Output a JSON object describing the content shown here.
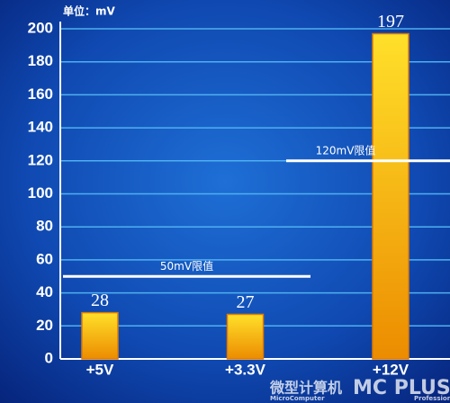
{
  "chart_data": {
    "type": "bar",
    "title": "单位：mV",
    "categories": [
      "+5V",
      "+3.3V",
      "+12V"
    ],
    "values": [
      28,
      27,
      197
    ],
    "color": "#f5b400",
    "ylim": [
      0,
      200
    ],
    "yticks": [
      0,
      20,
      40,
      60,
      80,
      100,
      120,
      140,
      160,
      180,
      200
    ],
    "grid": true,
    "reference_lines": [
      {
        "label": "50mV限值",
        "value": 50
      },
      {
        "label": "120mV限值",
        "value": 120
      }
    ],
    "watermark": [
      "微型计算机",
      "MicroComputer",
      "MC PLUS",
      "Professional"
    ]
  }
}
